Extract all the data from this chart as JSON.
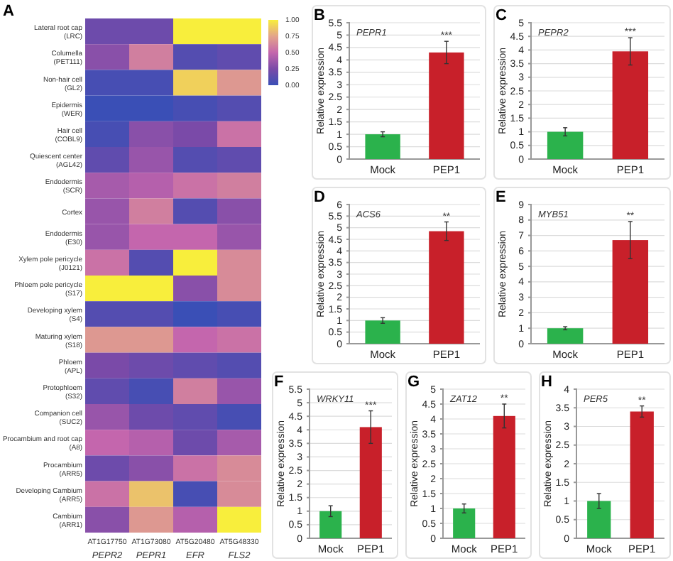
{
  "chart_data": [
    {
      "type": "heatmap",
      "title": "A",
      "categories": [
        "AT1G17750 PEPR2",
        "AT1G73080 PEPR1",
        "AT5G20480 EFR",
        "AT5G48330 FLS2"
      ],
      "y_categories": [
        "Lateral root cap (LRC)",
        "Columella (PET111)",
        "Non-hair cell (GL2)",
        "Epidermis (WER)",
        "Hair cell (COBL9)",
        "Quiescent center (AGL42)",
        "Endodermis (SCR)",
        "Cortex",
        "Endodermis (E30)",
        "Xylem pole pericycle (J0121)",
        "Phloem pole pericycle (S17)",
        "Developing xylem (S4)",
        "Maturing xylem (S18)",
        "Phloem (APL)",
        "Protophloem (S32)",
        "Companion cell (SUC2)",
        "Procambium and root cap (A8)",
        "Procambium (ARR5)",
        "Developing Cambium (ARR5)",
        "Cambium (ARR1)"
      ],
      "cells": [
        [
          0.2,
          0.2,
          1.0,
          1.0
        ],
        [
          0.3,
          0.6,
          0.1,
          0.15
        ],
        [
          0.05,
          0.05,
          0.9,
          0.7
        ],
        [
          0.0,
          0.0,
          0.05,
          0.1
        ],
        [
          0.05,
          0.3,
          0.25,
          0.55
        ],
        [
          0.15,
          0.35,
          0.1,
          0.15
        ],
        [
          0.4,
          0.45,
          0.55,
          0.6
        ],
        [
          0.35,
          0.6,
          0.1,
          0.3
        ],
        [
          0.35,
          0.5,
          0.5,
          0.35
        ],
        [
          0.55,
          0.1,
          1.0,
          0.65
        ],
        [
          1.0,
          1.0,
          0.3,
          0.65
        ],
        [
          0.1,
          0.1,
          0.0,
          0.05
        ],
        [
          0.7,
          0.7,
          0.5,
          0.55
        ],
        [
          0.25,
          0.2,
          0.15,
          0.1
        ],
        [
          0.15,
          0.05,
          0.6,
          0.35
        ],
        [
          0.35,
          0.2,
          0.15,
          0.05
        ],
        [
          0.5,
          0.45,
          0.2,
          0.4
        ],
        [
          0.2,
          0.3,
          0.55,
          0.65
        ],
        [
          0.55,
          0.85,
          0.05,
          0.65
        ],
        [
          0.3,
          0.7,
          0.45,
          1.0
        ]
      ],
      "clim": [
        0,
        1
      ],
      "cticks": [
        {
          "value": 0,
          "label": "0.00"
        },
        {
          "value": 0.25,
          "label": "0.25"
        },
        {
          "value": 0.5,
          "label": "0.50"
        },
        {
          "value": 0.75,
          "label": "0.75"
        },
        {
          "value": 1,
          "label": "1.00"
        }
      ]
    },
    {
      "type": "bar",
      "title": "B",
      "ylabel": "Relative expression",
      "categories": [
        "Mock",
        "PEP1"
      ],
      "values": [
        1.0,
        4.3
      ],
      "colors": [
        "#2bb24c",
        "#c8202a"
      ],
      "errors": [
        0.1,
        0.45
      ],
      "ylim": [
        0,
        5.5
      ],
      "yticks": [
        0,
        0.5,
        1,
        1.5,
        2,
        2.5,
        3,
        3.5,
        4,
        4.5,
        5,
        5.5
      ],
      "grid": "y",
      "annotations": [
        "PEPR1",
        {
          "text": "***",
          "x": "PEP1",
          "y": 4.75
        }
      ]
    },
    {
      "type": "bar",
      "title": "C",
      "ylabel": "Relative expression",
      "categories": [
        "Mock",
        "PEP1"
      ],
      "values": [
        1.0,
        3.95
      ],
      "colors": [
        "#2bb24c",
        "#c8202a"
      ],
      "errors": [
        0.15,
        0.5
      ],
      "ylim": [
        0,
        5
      ],
      "yticks": [
        0,
        0.5,
        1,
        1.5,
        2,
        2.5,
        3,
        3.5,
        4,
        4.5,
        5
      ],
      "grid": "y",
      "annotations": [
        "PEPR2",
        {
          "text": "***",
          "x": "PEP1",
          "y": 4.45
        }
      ]
    },
    {
      "type": "bar",
      "title": "D",
      "ylabel": "Relative expression",
      "categories": [
        "Mock",
        "PEP1"
      ],
      "values": [
        1.0,
        4.85
      ],
      "colors": [
        "#2bb24c",
        "#c8202a"
      ],
      "errors": [
        0.12,
        0.4
      ],
      "ylim": [
        0,
        6
      ],
      "yticks": [
        0,
        0.5,
        1,
        1.5,
        2,
        2.5,
        3,
        3.5,
        4,
        4.5,
        5,
        5.5,
        6
      ],
      "grid": "y",
      "annotations": [
        "ACS6",
        {
          "text": "**",
          "x": "PEP1",
          "y": 5.25
        }
      ]
    },
    {
      "type": "bar",
      "title": "E",
      "ylabel": "Relative expression",
      "categories": [
        "Mock",
        "PEP1"
      ],
      "values": [
        1.0,
        6.7
      ],
      "colors": [
        "#2bb24c",
        "#c8202a"
      ],
      "errors": [
        0.1,
        1.2
      ],
      "ylim": [
        0,
        9
      ],
      "yticks": [
        0,
        1,
        2,
        3,
        4,
        5,
        6,
        7,
        8,
        9
      ],
      "grid": "y",
      "annotations": [
        "MYB51",
        {
          "text": "**",
          "x": "PEP1",
          "y": 7.9
        }
      ]
    },
    {
      "type": "bar",
      "title": "F",
      "ylabel": "Relative expression",
      "categories": [
        "Mock",
        "PEP1"
      ],
      "values": [
        1.0,
        4.1
      ],
      "colors": [
        "#2bb24c",
        "#c8202a"
      ],
      "errors": [
        0.2,
        0.6
      ],
      "ylim": [
        0,
        5.5
      ],
      "yticks": [
        0,
        0.5,
        1,
        1.5,
        2,
        2.5,
        3,
        3.5,
        4,
        4.5,
        5,
        5.5
      ],
      "grid": "y",
      "annotations": [
        "WRKY11",
        {
          "text": "***",
          "x": "PEP1",
          "y": 4.7
        }
      ]
    },
    {
      "type": "bar",
      "title": "G",
      "ylabel": "Relative expression",
      "categories": [
        "Mock",
        "PEP1"
      ],
      "values": [
        1.0,
        4.1
      ],
      "colors": [
        "#2bb24c",
        "#c8202a"
      ],
      "errors": [
        0.15,
        0.4
      ],
      "ylim": [
        0,
        5
      ],
      "yticks": [
        0,
        0.5,
        1,
        1.5,
        2,
        2.5,
        3,
        3.5,
        4,
        4.5,
        5
      ],
      "grid": "y",
      "annotations": [
        "ZAT12",
        {
          "text": "**",
          "x": "PEP1",
          "y": 4.5
        }
      ]
    },
    {
      "type": "bar",
      "title": "H",
      "ylabel": "Relative expression",
      "categories": [
        "Mock",
        "PEP1"
      ],
      "values": [
        1.0,
        3.4
      ],
      "colors": [
        "#2bb24c",
        "#c8202a"
      ],
      "errors": [
        0.2,
        0.15
      ],
      "ylim": [
        0,
        4
      ],
      "yticks": [
        0,
        0.5,
        1,
        1.5,
        2,
        2.5,
        3,
        3.5,
        4
      ],
      "grid": "y",
      "annotations": [
        "PER5",
        {
          "text": "**",
          "x": "PEP1",
          "y": 3.55
        }
      ]
    }
  ]
}
